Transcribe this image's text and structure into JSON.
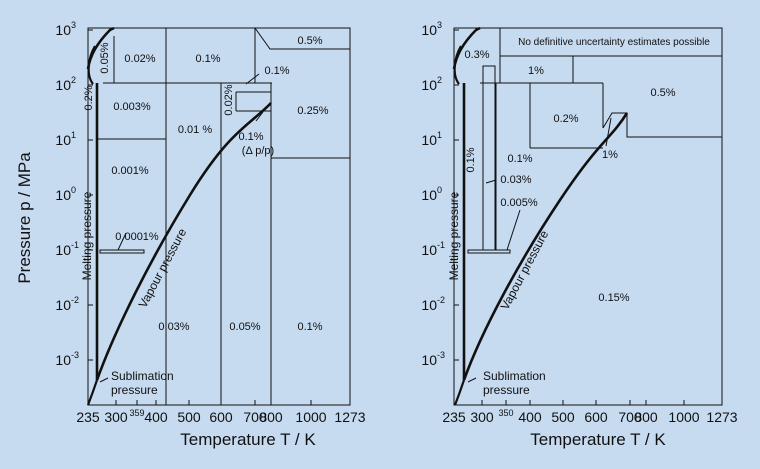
{
  "chart_data": [
    {
      "type": "diagram",
      "xlabel": "Temperature T / K",
      "ylabel": "Pressure p / MPa",
      "xticks": [
        "235",
        "300",
        "359",
        "400",
        "500",
        "600",
        "700",
        "800",
        "1000",
        "1273"
      ],
      "yticks": [
        {
          "base": "10",
          "exp": "3"
        },
        {
          "base": "10",
          "exp": "2"
        },
        {
          "base": "10",
          "exp": "1"
        },
        {
          "base": "10",
          "exp": "0"
        },
        {
          "base": "10",
          "exp": "-1"
        },
        {
          "base": "10",
          "exp": "-2"
        },
        {
          "base": "10",
          "exp": "-3"
        }
      ],
      "curves": {
        "melting": "Melting pressure",
        "vapour": "Vapour pressure",
        "sublimation_line1": "Sublimation",
        "sublimation_line2": "pressure"
      },
      "regions": [
        "0.05%",
        "0.02%",
        "0.1%",
        "0.5%",
        "0.2%",
        "0.003%",
        "0.1%",
        "0.01 %",
        "0.02%",
        "0.25%",
        "0.1%",
        "(Δ p/p)",
        "0.001%",
        "0.0001%",
        "0.03%",
        "0.05%",
        "0.1%"
      ]
    },
    {
      "type": "diagram",
      "xlabel": "Temperature T / K",
      "ylabel": "",
      "xticks": [
        "235",
        "300",
        "350",
        "400",
        "500",
        "600",
        "700",
        "800",
        "1000",
        "1273"
      ],
      "yticks": [
        {
          "base": "10",
          "exp": "3"
        },
        {
          "base": "10",
          "exp": "2"
        },
        {
          "base": "10",
          "exp": "1"
        },
        {
          "base": "10",
          "exp": "0"
        },
        {
          "base": "10",
          "exp": "-1"
        },
        {
          "base": "10",
          "exp": "-2"
        },
        {
          "base": "10",
          "exp": "-3"
        }
      ],
      "curves": {
        "melting": "Melting pressure",
        "vapour": "Vapour pressure",
        "sublimation_line1": "Sublimation",
        "sublimation_line2": "pressure"
      },
      "regions": [
        "No definitive uncertainty estimates possible",
        "0.3%",
        "1%",
        "0.5%",
        "0.2%",
        "0.1%",
        "0.1%",
        "0.03%",
        "1%",
        "0.005%",
        "0.15%"
      ]
    }
  ]
}
